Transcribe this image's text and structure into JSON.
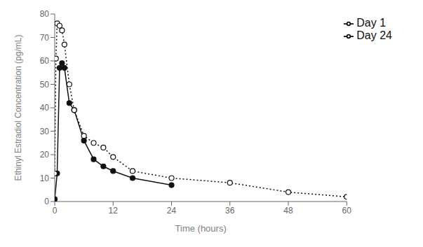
{
  "chart_data": {
    "type": "line",
    "xlabel": "Time (hours)",
    "ylabel": "Ethinyl Estradiol Concentration (pg/mL)",
    "series": [
      {
        "name": "Day 1",
        "color": "#111111",
        "line_style": "solid",
        "marker": "filled_circle",
        "x": [
          0,
          0.5,
          1,
          1.5,
          2,
          3,
          4,
          6,
          8,
          10,
          12,
          16,
          24
        ],
        "values": [
          1,
          12,
          57,
          59,
          57,
          42,
          39,
          26,
          18,
          15,
          13,
          10,
          7
        ]
      },
      {
        "name": "Day 24",
        "color": "#111111",
        "line_style": "dotted",
        "marker": "open_circle",
        "x": [
          0,
          0.25,
          0.5,
          1,
          1.5,
          2,
          3,
          4,
          6,
          8,
          10,
          12,
          16,
          24,
          36,
          48,
          60
        ],
        "values": [
          12,
          61,
          76,
          75,
          73,
          67,
          50,
          39,
          28,
          25,
          23,
          19,
          13,
          10,
          8,
          4,
          2
        ]
      }
    ],
    "xlim": [
      0,
      60
    ],
    "ylim": [
      0,
      80
    ],
    "xticks": [
      0,
      12,
      24,
      36,
      48,
      60
    ],
    "yticks": [
      0,
      10,
      20,
      30,
      40,
      50,
      60,
      70,
      80
    ],
    "legend": "upper right",
    "grid": false
  }
}
